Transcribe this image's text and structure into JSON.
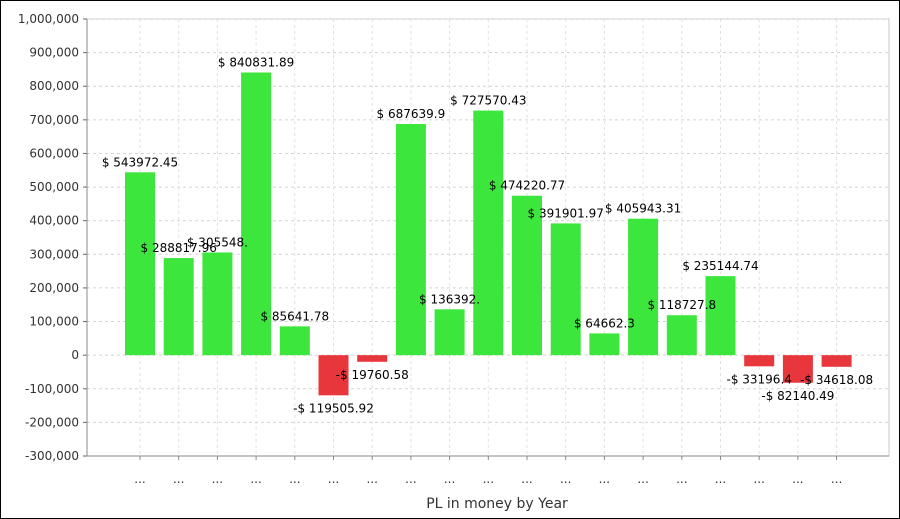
{
  "chart_data": {
    "type": "bar",
    "title": "",
    "xlabel": "PL in money by Year",
    "ylabel": "",
    "ylim": [
      -300000,
      1000000
    ],
    "y_ticks": [
      1000000,
      900000,
      800000,
      700000,
      600000,
      500000,
      400000,
      300000,
      200000,
      100000,
      0,
      -100000,
      -200000,
      -300000
    ],
    "y_tick_labels": [
      "1,000,000",
      "900,000",
      "800,000",
      "700,000",
      "600,000",
      "500,000",
      "400,000",
      "300,000",
      "200,000",
      "100,000",
      "0",
      "-100,000",
      "-200,000",
      "-300,000"
    ],
    "categories": [
      "...",
      "...",
      "...",
      "...",
      "...",
      "...",
      "...",
      "...",
      "...",
      "...",
      "...",
      "...",
      "...",
      "...",
      "...",
      "...",
      "...",
      "...",
      "..."
    ],
    "values": [
      543972.45,
      288817.96,
      305548,
      840831.89,
      85641.78,
      -119505.92,
      -19760.58,
      687639.9,
      136392,
      727570.43,
      474220.77,
      391901.97,
      64662.3,
      405943.31,
      118727.8,
      235144.74,
      -33196.4,
      -82140.49,
      -34618.08
    ],
    "data_labels": [
      "$ 543972.45",
      "$ 288817.96",
      "$ 305548.",
      "$ 840831.89",
      "$ 85641.78",
      "-$ 119505.92",
      "-$ 19760.58",
      "$ 687639.9",
      "$ 136392.",
      "$ 727570.43",
      "$ 474220.77",
      "$ 391901.97",
      "$ 64662.3",
      "$ 405943.31",
      "$ 118727.8",
      "$ 235144.74",
      "-$ 33196.4",
      "-$ 82140.49",
      "-$ 34618.08"
    ],
    "grid": true,
    "colors": {
      "positive": "#3ce63c",
      "negative": "#e8373c"
    }
  }
}
